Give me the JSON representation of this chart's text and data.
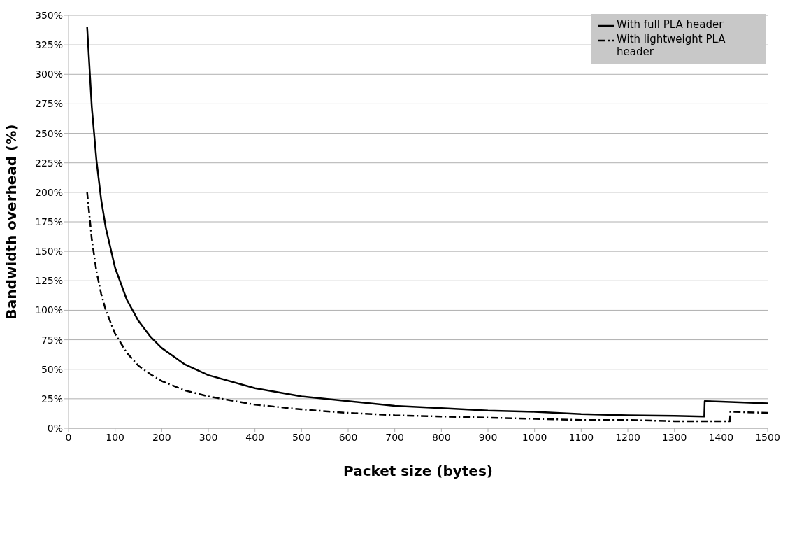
{
  "chart_data": {
    "type": "line",
    "xlabel": "Packet size (bytes)",
    "ylabel": "Bandwidth overhead (%)",
    "xlim": [
      0,
      1500
    ],
    "xticks": [
      0,
      100,
      200,
      300,
      400,
      500,
      600,
      700,
      800,
      900,
      1000,
      1100,
      1200,
      1300,
      1400,
      1500
    ],
    "ylim": [
      0,
      350
    ],
    "yticks": [
      {
        "value": 0,
        "label": "0%"
      },
      {
        "value": 25,
        "label": "25%"
      },
      {
        "value": 50,
        "label": "50%"
      },
      {
        "value": 75,
        "label": "75%"
      },
      {
        "value": 100,
        "label": "100%"
      },
      {
        "value": 125,
        "label": "125%"
      },
      {
        "value": 150,
        "label": "150%"
      },
      {
        "value": 175,
        "label": "175%"
      },
      {
        "value": 200,
        "label": "200%"
      },
      {
        "value": 225,
        "label": "225%"
      },
      {
        "value": 250,
        "label": "250%"
      },
      {
        "value": 275,
        "label": "275%"
      },
      {
        "value": 300,
        "label": "300%"
      },
      {
        "value": 325,
        "label": "325%"
      },
      {
        "value": 350,
        "label": "350%"
      }
    ],
    "grid": "y",
    "legend": "top right",
    "marker": "none",
    "series": [
      {
        "name": "With full PLA header",
        "color": "#000000",
        "line_style": "solid",
        "x": [
          40,
          50,
          60,
          70,
          80,
          100,
          125,
          150,
          175,
          200,
          250,
          300,
          400,
          500,
          600,
          700,
          800,
          900,
          1000,
          1100,
          1200,
          1300,
          1364,
          1365,
          1400,
          1500
        ],
        "values": [
          340,
          272,
          227,
          194,
          170,
          136,
          109,
          91,
          78,
          68,
          54,
          45,
          34,
          27,
          23,
          19,
          17,
          15,
          14,
          12,
          11,
          10.5,
          10,
          23,
          22.5,
          21
        ]
      },
      {
        "name": "With lightweight PLA header",
        "color": "#000000",
        "line_style": "dashed",
        "x": [
          40,
          50,
          60,
          70,
          80,
          100,
          125,
          150,
          175,
          200,
          250,
          300,
          400,
          500,
          600,
          700,
          800,
          900,
          1000,
          1100,
          1200,
          1300,
          1419,
          1420,
          1500
        ],
        "values": [
          200,
          160,
          133,
          114,
          100,
          80,
          64,
          53,
          46,
          40,
          32,
          27,
          20,
          16,
          13,
          11,
          10,
          9,
          8,
          7,
          7,
          6,
          6,
          14,
          13
        ]
      }
    ]
  }
}
